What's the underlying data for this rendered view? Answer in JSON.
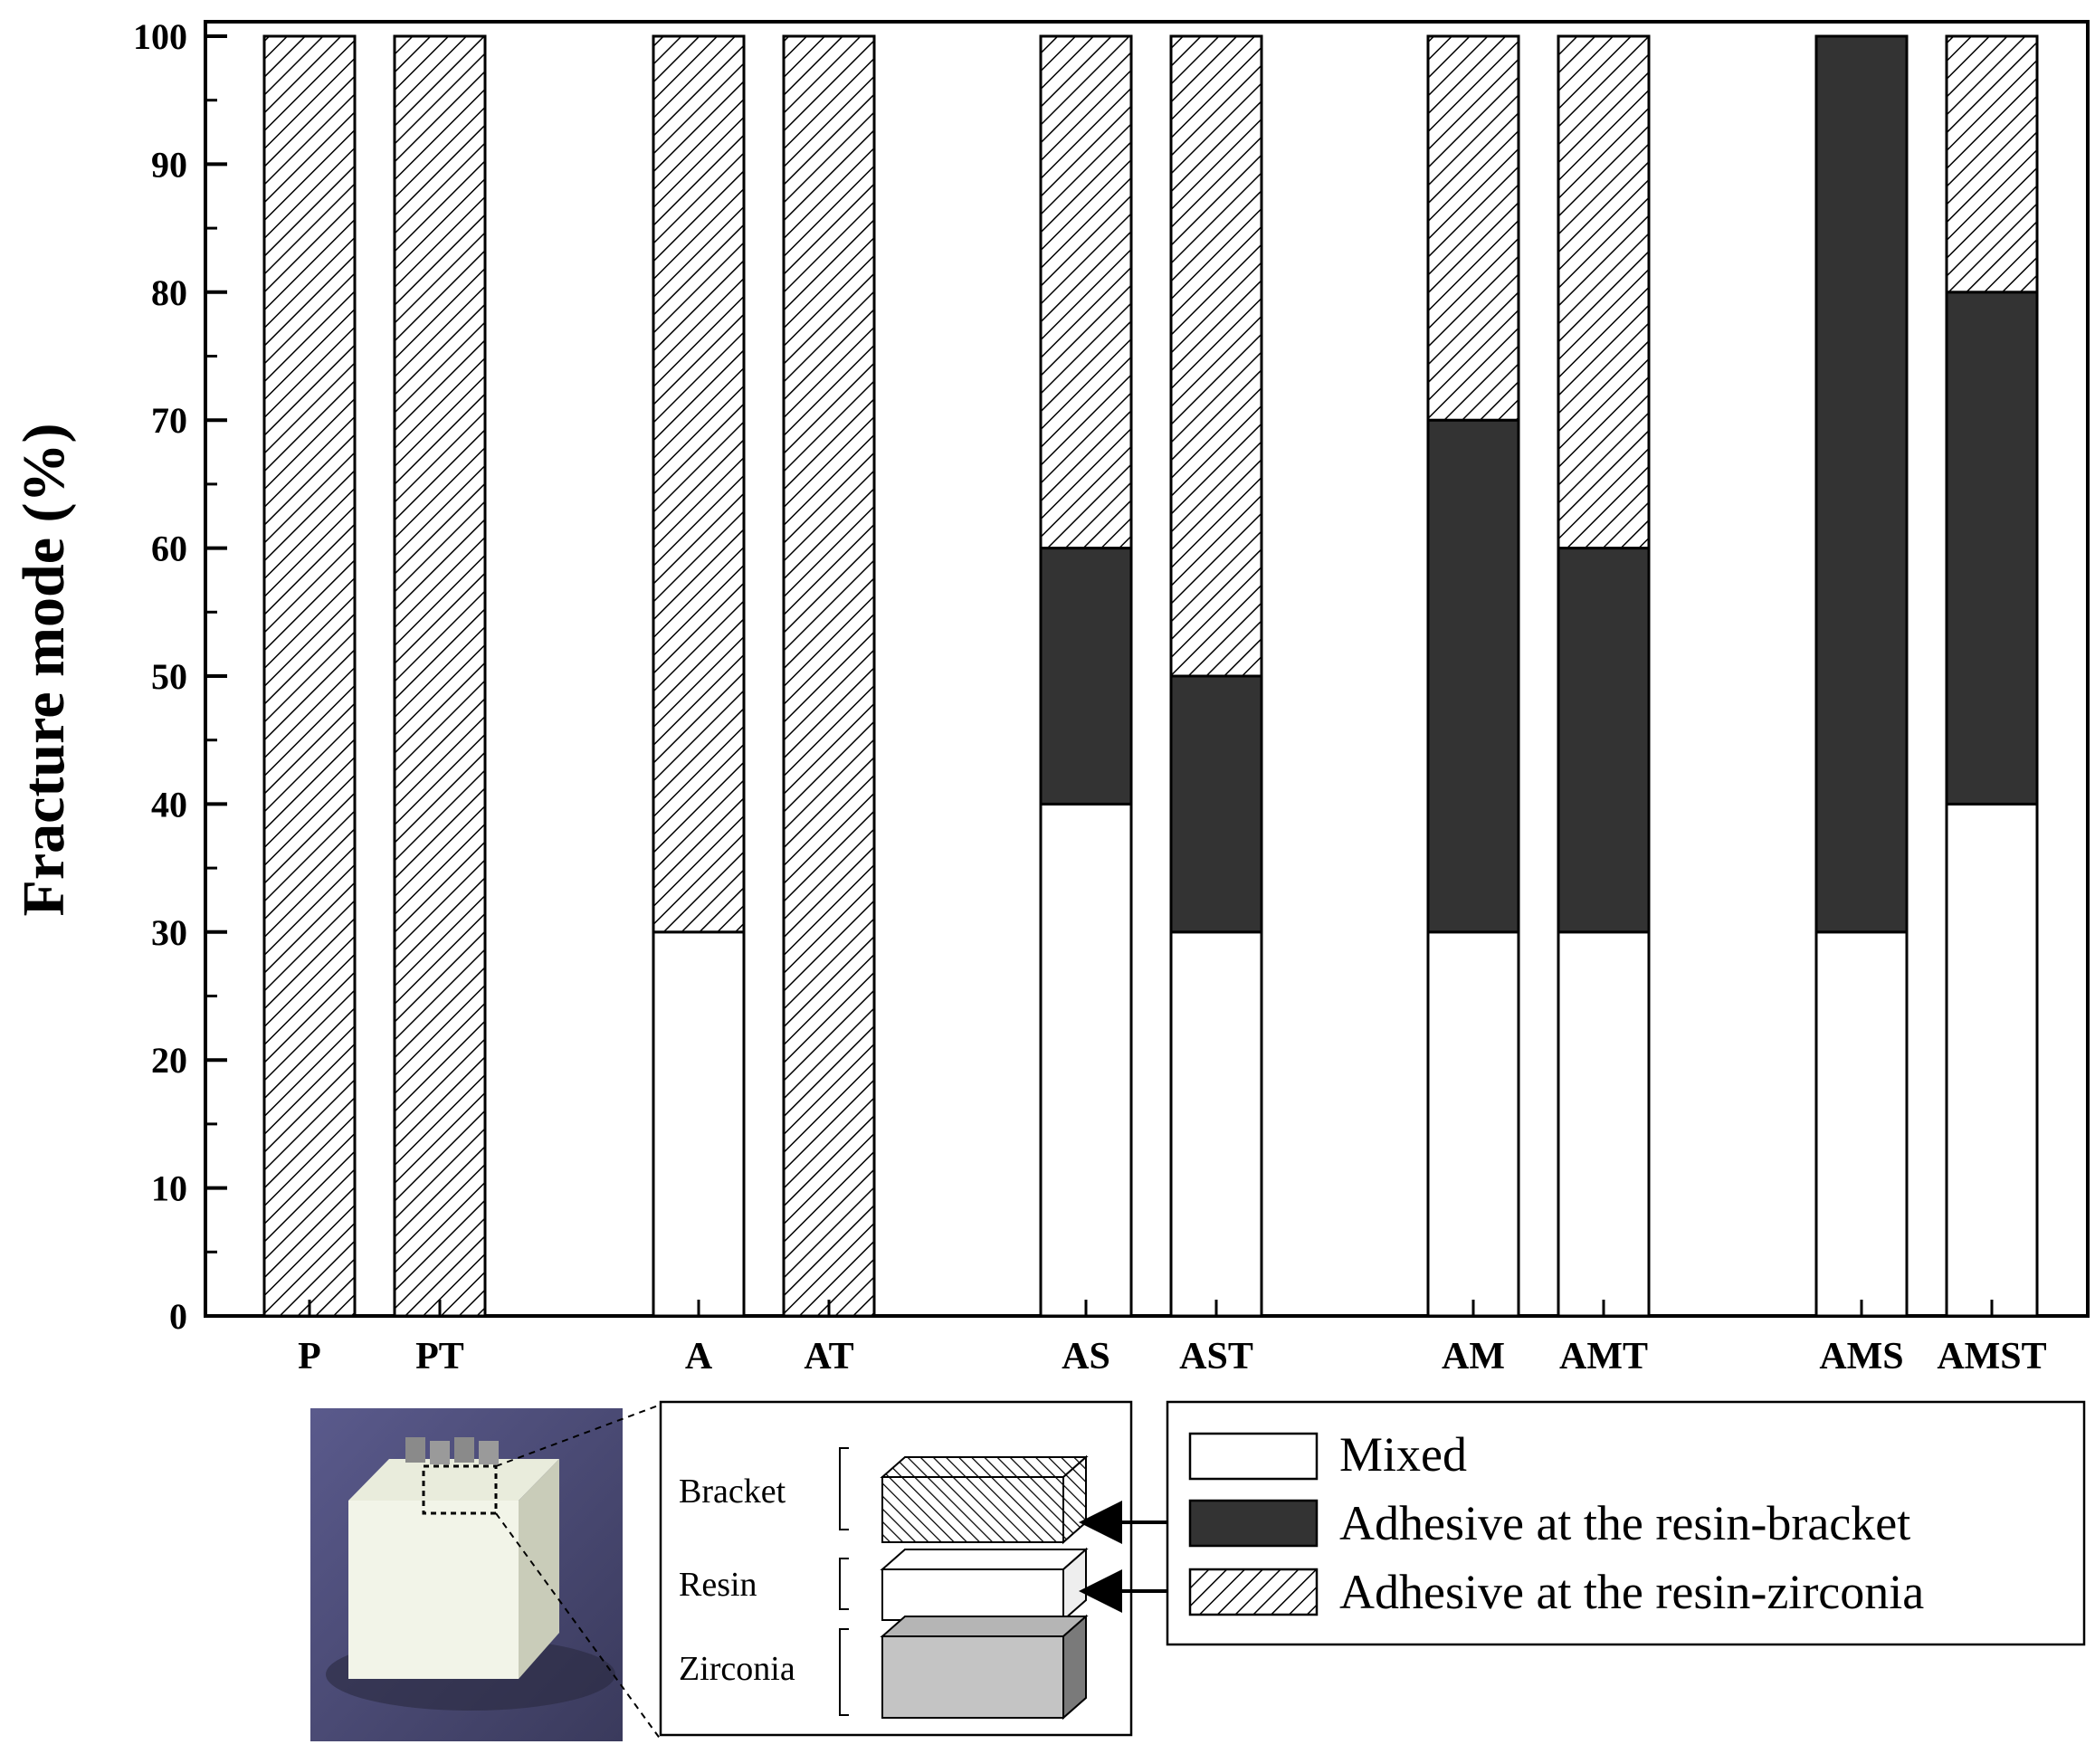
{
  "chart_data": {
    "type": "bar",
    "stacked": true,
    "ylabel": "Fracture mode (%)",
    "ylim": [
      0,
      100
    ],
    "yticks": [
      "0",
      "10",
      "20",
      "30",
      "40",
      "50",
      "60",
      "70",
      "80",
      "90",
      "100"
    ],
    "categories": [
      "P",
      "PT",
      "A",
      "AT",
      "AS",
      "AST",
      "AM",
      "AMT",
      "AMS",
      "AMST"
    ],
    "groups": [
      [
        "P",
        "PT"
      ],
      [
        "A",
        "AT"
      ],
      [
        "AS",
        "AST"
      ],
      [
        "AM",
        "AMT"
      ],
      [
        "AMS",
        "AMST"
      ]
    ],
    "series": [
      {
        "name": "Mixed",
        "fill": "white",
        "color": "#ffffff",
        "values": [
          0,
          0,
          30,
          0,
          40,
          30,
          30,
          30,
          30,
          40
        ]
      },
      {
        "name": "Adhesive at the resin-bracket",
        "fill": "solid",
        "color": "#333333",
        "values": [
          0,
          0,
          0,
          0,
          20,
          20,
          40,
          30,
          70,
          40
        ]
      },
      {
        "name": "Adhesive at the resin-zirconia",
        "fill": "hatch",
        "color": "#000000",
        "values": [
          100,
          100,
          70,
          100,
          40,
          50,
          30,
          40,
          0,
          20
        ]
      }
    ],
    "legend_position": "bottom-right"
  },
  "inset": {
    "photo_icon": "specimen-photo",
    "layers": [
      {
        "label": "Bracket",
        "fill": "hatch"
      },
      {
        "label": "Resin",
        "fill": "white"
      },
      {
        "label": "Zirconia",
        "fill": "gray"
      }
    ]
  }
}
